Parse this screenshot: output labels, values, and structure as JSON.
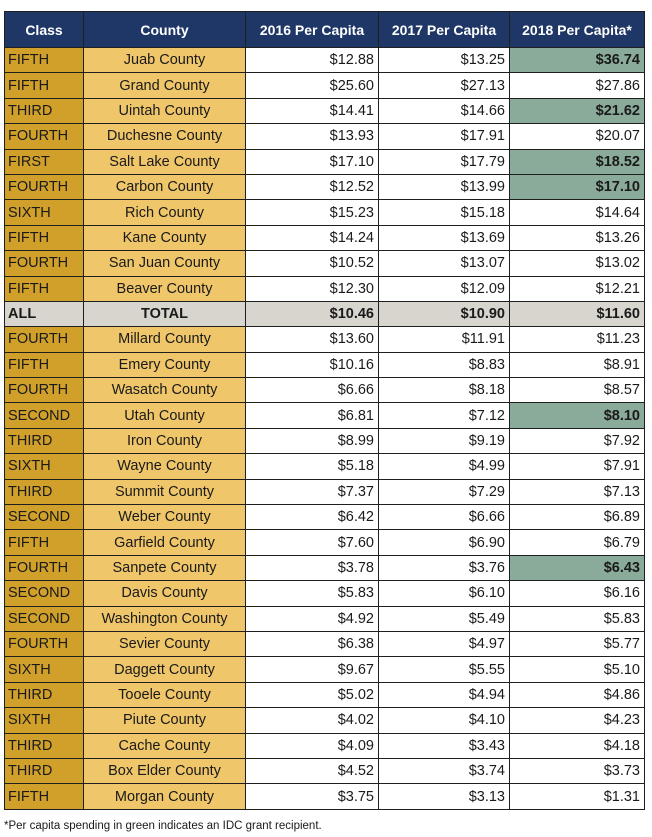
{
  "table": {
    "headers": [
      "Class",
      "County",
      "2016 Per Capita",
      "2017 Per Capita",
      "2018 Per Capita*"
    ],
    "rows": [
      [
        "FIFTH",
        "Juab County",
        "$12.88",
        "$13.25",
        "$36.74"
      ],
      [
        "FIFTH",
        "Grand County",
        "$25.60",
        "$27.13",
        "$27.86"
      ],
      [
        "THIRD",
        "Uintah County",
        "$14.41",
        "$14.66",
        "$21.62"
      ],
      [
        "FOURTH",
        "Duchesne County",
        "$13.93",
        "$17.91",
        "$20.07"
      ],
      [
        "FIRST",
        "Salt Lake County",
        "$17.10",
        "$17.79",
        "$18.52"
      ],
      [
        "FOURTH",
        "Carbon County",
        "$12.52",
        "$13.99",
        "$17.10"
      ],
      [
        "SIXTH",
        "Rich County",
        "$15.23",
        "$15.18",
        "$14.64"
      ],
      [
        "FIFTH",
        "Kane County",
        "$14.24",
        "$13.69",
        "$13.26"
      ],
      [
        "FOURTH",
        "San Juan County",
        "$10.52",
        "$13.07",
        "$13.02"
      ],
      [
        "FIFTH",
        "Beaver County",
        "$12.30",
        "$12.09",
        "$12.21"
      ],
      [
        "ALL",
        "TOTAL",
        "$10.46",
        "$10.90",
        "$11.60"
      ],
      [
        "FOURTH",
        "Millard County",
        "$13.60",
        "$11.91",
        "$11.23"
      ],
      [
        "FIFTH",
        "Emery County",
        "$10.16",
        "$8.83",
        "$8.91"
      ],
      [
        "FOURTH",
        "Wasatch County",
        "$6.66",
        "$8.18",
        "$8.57"
      ],
      [
        "SECOND",
        "Utah County",
        "$6.81",
        "$7.12",
        "$8.10"
      ],
      [
        "THIRD",
        "Iron County",
        "$8.99",
        "$9.19",
        "$7.92"
      ],
      [
        "SIXTH",
        "Wayne County",
        "$5.18",
        "$4.99",
        "$7.91"
      ],
      [
        "THIRD",
        "Summit County",
        "$7.37",
        "$7.29",
        "$7.13"
      ],
      [
        "SECOND",
        "Weber County",
        "$6.42",
        "$6.66",
        "$6.89"
      ],
      [
        "FIFTH",
        "Garfield County",
        "$7.60",
        "$6.90",
        "$6.79"
      ],
      [
        "FOURTH",
        "Sanpete County",
        "$3.78",
        "$3.76",
        "$6.43"
      ],
      [
        "SECOND",
        "Davis County",
        "$5.83",
        "$6.10",
        "$6.16"
      ],
      [
        "SECOND",
        "Washington County",
        "$4.92",
        "$5.49",
        "$5.83"
      ],
      [
        "FOURTH",
        "Sevier County",
        "$6.38",
        "$4.97",
        "$5.77"
      ],
      [
        "SIXTH",
        "Daggett County",
        "$9.67",
        "$5.55",
        "$5.10"
      ],
      [
        "THIRD",
        "Tooele County",
        "$5.02",
        "$4.94",
        "$4.86"
      ],
      [
        "SIXTH",
        "Piute County",
        "$4.02",
        "$4.10",
        "$4.23"
      ],
      [
        "THIRD",
        "Cache County",
        "$4.09",
        "$3.43",
        "$4.18"
      ],
      [
        "THIRD",
        "Box Elder County",
        "$4.52",
        "$3.74",
        "$3.73"
      ],
      [
        "FIFTH",
        "Morgan County",
        "$3.75",
        "$3.13",
        "$1.31"
      ]
    ],
    "green_2018_rows": [
      0,
      2,
      4,
      5,
      14,
      20
    ],
    "total_row": 10
  },
  "colors": {
    "header_bg": "#1f3767",
    "class_bg": "#d0a02b",
    "county_bg": "#f0c66a",
    "green_highlight": "#8aaa9a",
    "total_bg": "#d8d5cf",
    "total_text": "#1f3767"
  },
  "footnote": "*Per capita spending in green indicates an IDC grant recipient."
}
